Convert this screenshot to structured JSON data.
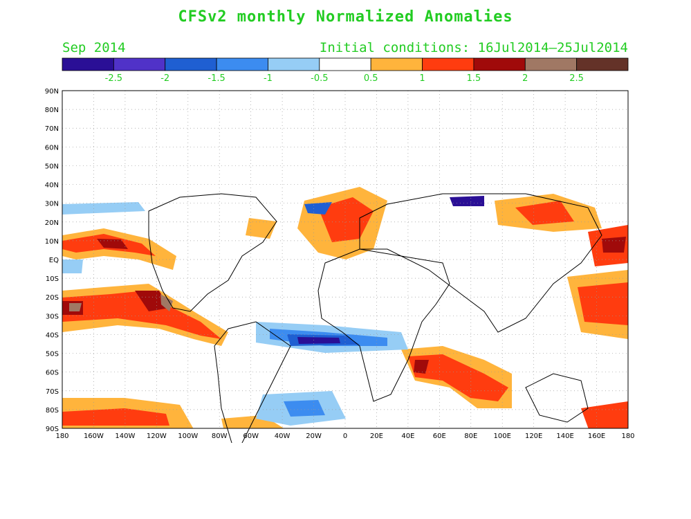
{
  "title": "CFSv2 monthly Normalized Anomalies",
  "subtitle_left": "Sep 2014",
  "subtitle_right": "Initial conditions: 16Jul2014—25Jul2014",
  "colorbar": {
    "colors": [
      "#2a0f96",
      "#5032c8",
      "#1f5fd2",
      "#3c8cf0",
      "#96cdf5",
      "#ffffff",
      "#ffb43c",
      "#ff3c0f",
      "#a00a0a",
      "#a07864",
      "#643228"
    ],
    "labels": [
      "-2.5",
      "-2",
      "-1.5",
      "-1",
      "-0.5",
      "0.5",
      "1",
      "1.5",
      "2",
      "2.5"
    ],
    "label_color": "#22cc22"
  },
  "axes": {
    "y_labels": [
      "90N",
      "80N",
      "70N",
      "60N",
      "50N",
      "40N",
      "30N",
      "20N",
      "10N",
      "EQ",
      "10S",
      "20S",
      "30S",
      "40S",
      "50S",
      "60S",
      "70S",
      "80S",
      "90S"
    ],
    "x_labels": [
      "180",
      "160W",
      "140W",
      "120W",
      "100W",
      "80W",
      "60W",
      "40W",
      "20W",
      "0",
      "20E",
      "40E",
      "60E",
      "80E",
      "100E",
      "120E",
      "140E",
      "160E",
      "180"
    ]
  }
}
